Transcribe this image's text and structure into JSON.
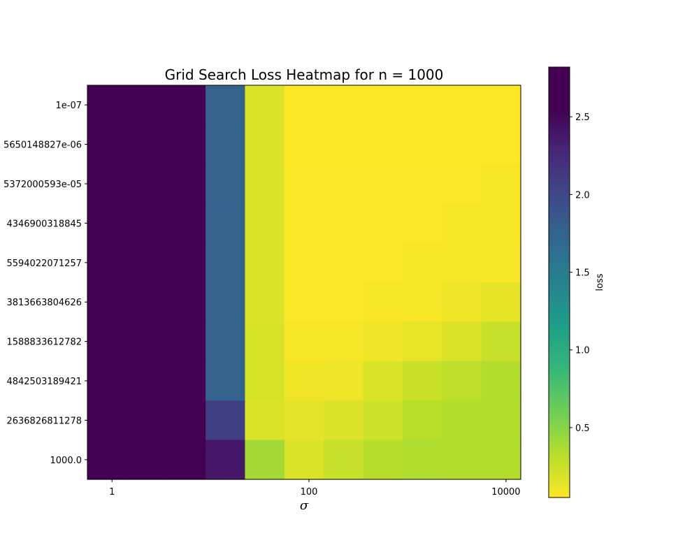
{
  "chart_data": {
    "type": "heatmap",
    "title": "Grid Search Loss Heatmap for n = 1000",
    "xlabel": "σ",
    "ylabel": "",
    "x_scale": "log",
    "x_tick_labels": [
      "1",
      "100",
      "10000"
    ],
    "y_labels": [
      "1e-07",
      "5650148827e-06",
      "5372000593e-05",
      "4346900318845",
      "5594022071257",
      "3813663804626",
      "1588833612782",
      "4842503189421",
      "2636826811278",
      "1000.0"
    ],
    "colorbar": {
      "label": "loss",
      "ticks": [
        0.5,
        1.0,
        1.5,
        2.0,
        2.5
      ],
      "range": [
        0.05,
        2.82
      ],
      "colormap": "viridis_r"
    },
    "values": [
      [
        2.82,
        2.82,
        2.82,
        1.95,
        0.2,
        0.05,
        0.05,
        0.05,
        0.05,
        0.05,
        0.05
      ],
      [
        2.82,
        2.82,
        2.82,
        1.95,
        0.2,
        0.05,
        0.05,
        0.05,
        0.05,
        0.05,
        0.05
      ],
      [
        2.82,
        2.82,
        2.82,
        1.95,
        0.2,
        0.06,
        0.06,
        0.06,
        0.06,
        0.06,
        0.07
      ],
      [
        2.82,
        2.82,
        2.82,
        1.95,
        0.2,
        0.06,
        0.06,
        0.06,
        0.06,
        0.07,
        0.07
      ],
      [
        2.82,
        2.82,
        2.82,
        1.95,
        0.2,
        0.06,
        0.06,
        0.06,
        0.07,
        0.07,
        0.08
      ],
      [
        2.82,
        2.82,
        2.82,
        1.95,
        0.2,
        0.06,
        0.06,
        0.07,
        0.08,
        0.12,
        0.15
      ],
      [
        2.82,
        2.82,
        2.82,
        1.95,
        0.21,
        0.07,
        0.08,
        0.1,
        0.14,
        0.2,
        0.28
      ],
      [
        2.82,
        2.82,
        2.82,
        1.95,
        0.22,
        0.1,
        0.12,
        0.2,
        0.27,
        0.32,
        0.37
      ],
      [
        2.82,
        2.82,
        2.82,
        2.3,
        0.2,
        0.16,
        0.2,
        0.26,
        0.34,
        0.37,
        0.37
      ],
      [
        2.82,
        2.82,
        2.82,
        2.65,
        0.43,
        0.2,
        0.28,
        0.35,
        0.38,
        0.37,
        0.37
      ]
    ]
  }
}
